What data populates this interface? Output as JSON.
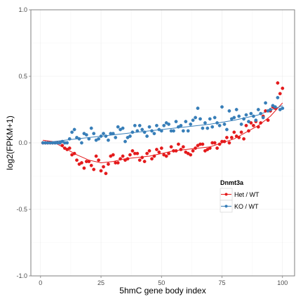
{
  "chart_data": {
    "type": "scatter",
    "xlabel": "5hmC gene body index",
    "ylabel": "log2(FPKM+1)",
    "xlim": [
      -4,
      105
    ],
    "ylim": [
      -1.0,
      1.0
    ],
    "x_ticks": [
      0,
      25,
      50,
      75,
      100
    ],
    "y_ticks": [
      -1.0,
      -0.5,
      0.0,
      0.5,
      1.0
    ],
    "y_tick_labels": [
      "-1.0",
      "-0.5",
      "0.0",
      "0.5",
      "1.0"
    ],
    "grid": true,
    "legend": {
      "title": "Dnmt3a",
      "position": "right"
    },
    "series": [
      {
        "name": "Het / WT",
        "color": "#e41a1c",
        "x": [
          1,
          2,
          3,
          4,
          5,
          6,
          7,
          8,
          9,
          10,
          11,
          12,
          13,
          14,
          15,
          16,
          17,
          18,
          19,
          20,
          21,
          22,
          23,
          24,
          25,
          26,
          27,
          28,
          29,
          30,
          31,
          32,
          33,
          34,
          35,
          36,
          37,
          38,
          39,
          40,
          41,
          42,
          43,
          44,
          45,
          46,
          47,
          48,
          49,
          50,
          51,
          52,
          53,
          54,
          55,
          56,
          57,
          58,
          59,
          60,
          61,
          62,
          63,
          64,
          65,
          66,
          67,
          68,
          69,
          70,
          71,
          72,
          73,
          74,
          75,
          76,
          77,
          78,
          79,
          80,
          81,
          82,
          83,
          84,
          85,
          86,
          87,
          88,
          89,
          90,
          91,
          92,
          93,
          94,
          95,
          96,
          97,
          98,
          99,
          100
        ],
        "y": [
          0.0,
          0.0,
          0.0,
          0.0,
          0.0,
          0.0,
          0.0,
          0.0,
          -0.02,
          -0.04,
          -0.05,
          -0.04,
          -0.09,
          -0.08,
          -0.13,
          -0.16,
          -0.15,
          -0.19,
          -0.14,
          -0.14,
          -0.17,
          -0.2,
          -0.1,
          -0.13,
          -0.21,
          -0.18,
          -0.23,
          -0.16,
          -0.1,
          -0.09,
          -0.15,
          -0.15,
          -0.12,
          -0.1,
          -0.13,
          -0.12,
          -0.09,
          -0.06,
          -0.08,
          -0.08,
          -0.13,
          -0.11,
          -0.14,
          -0.08,
          -0.06,
          -0.12,
          -0.1,
          -0.05,
          -0.07,
          -0.04,
          -0.09,
          -0.1,
          -0.08,
          -0.03,
          -0.06,
          -0.06,
          -0.01,
          -0.05,
          -0.03,
          -0.07,
          -0.08,
          -0.09,
          -0.06,
          -0.04,
          -0.02,
          -0.01,
          -0.01,
          -0.06,
          -0.05,
          -0.04,
          0.0,
          0.0,
          -0.04,
          -0.01,
          0.01,
          0.01,
          0.04,
          0.0,
          0.04,
          0.08,
          0.05,
          0.04,
          0.08,
          0.03,
          0.13,
          0.09,
          0.15,
          0.13,
          0.16,
          0.12,
          0.15,
          0.2,
          0.24,
          0.17,
          0.24,
          0.27,
          0.26,
          0.45,
          0.37,
          0.41
        ]
      },
      {
        "name": "KO / WT",
        "color": "#377eb8",
        "x": [
          1,
          2,
          3,
          4,
          5,
          6,
          7,
          8,
          9,
          10,
          11,
          12,
          13,
          14,
          15,
          16,
          17,
          18,
          19,
          20,
          21,
          22,
          23,
          24,
          25,
          26,
          27,
          28,
          29,
          30,
          31,
          32,
          33,
          34,
          35,
          36,
          37,
          38,
          39,
          40,
          41,
          42,
          43,
          44,
          45,
          46,
          47,
          48,
          49,
          50,
          51,
          52,
          53,
          54,
          55,
          56,
          57,
          58,
          59,
          60,
          61,
          62,
          63,
          64,
          65,
          66,
          67,
          68,
          69,
          70,
          71,
          72,
          73,
          74,
          75,
          76,
          77,
          78,
          79,
          80,
          81,
          82,
          83,
          84,
          85,
          86,
          87,
          88,
          89,
          90,
          91,
          92,
          93,
          94,
          95,
          96,
          97,
          98,
          99,
          100
        ],
        "y": [
          0.0,
          0.0,
          0.0,
          0.0,
          0.0,
          0.0,
          0.0,
          0.0,
          0.01,
          0.0,
          0.0,
          0.03,
          0.08,
          0.1,
          0.04,
          0.03,
          0.0,
          0.07,
          0.06,
          0.03,
          0.11,
          0.07,
          0.02,
          0.03,
          0.05,
          0.07,
          0.05,
          0.02,
          0.07,
          0.07,
          0.04,
          0.12,
          0.1,
          0.11,
          0.01,
          0.04,
          0.05,
          0.08,
          0.13,
          0.09,
          0.13,
          0.1,
          0.08,
          0.05,
          0.12,
          0.09,
          0.07,
          0.13,
          0.1,
          0.09,
          0.13,
          0.15,
          0.14,
          0.09,
          0.09,
          0.16,
          0.12,
          0.13,
          0.09,
          0.16,
          0.09,
          0.14,
          0.17,
          0.19,
          0.26,
          0.18,
          0.11,
          0.15,
          0.11,
          0.18,
          0.12,
          0.19,
          0.15,
          0.13,
          0.27,
          0.14,
          0.1,
          0.24,
          0.18,
          0.19,
          0.25,
          0.2,
          0.14,
          0.18,
          0.21,
          0.16,
          0.22,
          0.2,
          0.17,
          0.25,
          0.22,
          0.19,
          0.3,
          0.24,
          0.25,
          0.28,
          0.27,
          0.34,
          0.25,
          0.26
        ]
      }
    ],
    "trend_lines": [
      {
        "name": "Het / WT",
        "color": "#e41a1c",
        "x": [
          1,
          5,
          10,
          15,
          20,
          25,
          30,
          35,
          40,
          45,
          50,
          55,
          60,
          65,
          70,
          75,
          80,
          85,
          90,
          95,
          100
        ],
        "y": [
          0.02,
          0.01,
          -0.04,
          -0.09,
          -0.13,
          -0.15,
          -0.14,
          -0.12,
          -0.11,
          -0.1,
          -0.08,
          -0.06,
          -0.05,
          -0.04,
          -0.03,
          0.0,
          0.03,
          0.08,
          0.13,
          0.2,
          0.3
        ]
      },
      {
        "name": "KO / WT",
        "color": "#377eb8",
        "x": [
          1,
          10,
          20,
          30,
          40,
          50,
          60,
          70,
          80,
          90,
          100
        ],
        "y": [
          0.0,
          0.02,
          0.04,
          0.06,
          0.08,
          0.1,
          0.12,
          0.14,
          0.17,
          0.21,
          0.28
        ]
      }
    ]
  }
}
